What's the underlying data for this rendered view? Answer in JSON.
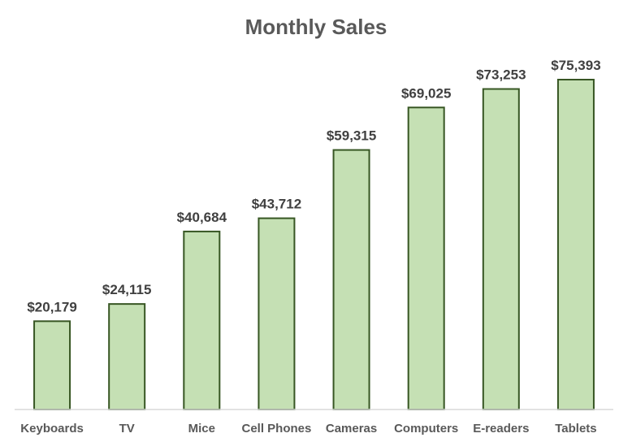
{
  "chart_data": {
    "type": "bar",
    "title": "Monthly Sales",
    "xlabel": "",
    "ylabel": "",
    "categories": [
      "Keyboards",
      "TV",
      "Mice",
      "Cell Phones",
      "Cameras",
      "Computers",
      "E-readers",
      "Tablets"
    ],
    "values": [
      20179,
      24115,
      40684,
      43712,
      59315,
      69025,
      73253,
      75393
    ],
    "data_labels": [
      "$20,179",
      "$24,115",
      "$40,684",
      "$43,712",
      "$59,315",
      "$69,025",
      "$73,253",
      "$75,393"
    ],
    "ylim": [
      0,
      75393
    ],
    "grid": false,
    "legend": "none",
    "colors": {
      "bar_fill": "#c5e0b4",
      "bar_stroke": "#375623",
      "title": "#595959",
      "label": "#404040",
      "axis": "#d9d9d9"
    }
  }
}
